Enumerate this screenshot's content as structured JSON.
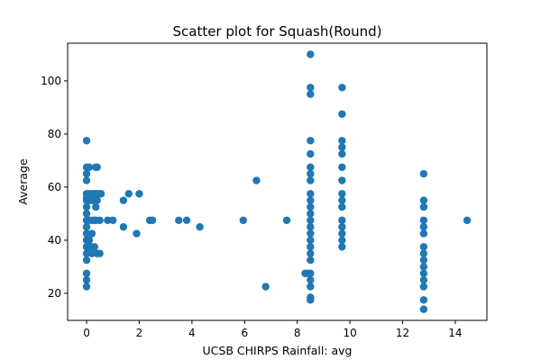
{
  "chart_data": {
    "type": "scatter",
    "title": "Scatter plot for Squash(Round)",
    "xlabel": "UCSB CHIRPS Rainfall: avg",
    "ylabel": "Average",
    "xlim": [
      -0.72,
      15.2
    ],
    "ylim": [
      9.8,
      114.2
    ],
    "xticks": [
      0,
      2,
      4,
      6,
      8,
      10,
      12,
      14
    ],
    "yticks": [
      20,
      40,
      60,
      80,
      100
    ],
    "grid": false,
    "color": "#1f77b4",
    "series": [
      {
        "points": [
          [
            0,
            77.5
          ],
          [
            0,
            67.5
          ],
          [
            0,
            65
          ],
          [
            0,
            62.5
          ],
          [
            0,
            57.5
          ],
          [
            0,
            56
          ],
          [
            0,
            55
          ],
          [
            0,
            52.5
          ],
          [
            0,
            50
          ],
          [
            0,
            47.5
          ],
          [
            0,
            45
          ],
          [
            0,
            42.5
          ],
          [
            0,
            40
          ],
          [
            0,
            37.5
          ],
          [
            0,
            35
          ],
          [
            0,
            32.5
          ],
          [
            0,
            27.5
          ],
          [
            0,
            25
          ],
          [
            0,
            22.5
          ],
          [
            0.1,
            67.5
          ],
          [
            0.1,
            57.5
          ],
          [
            0.1,
            55
          ],
          [
            0.1,
            47.5
          ],
          [
            0.1,
            40
          ],
          [
            0.1,
            37.5
          ],
          [
            0.2,
            57.5
          ],
          [
            0.2,
            55
          ],
          [
            0.2,
            47.5
          ],
          [
            0.2,
            42.5
          ],
          [
            0.2,
            37.5
          ],
          [
            0.2,
            35
          ],
          [
            0.3,
            57.5
          ],
          [
            0.3,
            55
          ],
          [
            0.3,
            47.5
          ],
          [
            0.3,
            37.5
          ],
          [
            0.35,
            67.5
          ],
          [
            0.35,
            57.5
          ],
          [
            0.35,
            52.5
          ],
          [
            0.35,
            47.5
          ],
          [
            0.4,
            67.5
          ],
          [
            0.4,
            57.5
          ],
          [
            0.4,
            55
          ],
          [
            0.4,
            35
          ],
          [
            0.5,
            57.5
          ],
          [
            0.5,
            47.5
          ],
          [
            0.5,
            35
          ],
          [
            0.55,
            57.5
          ],
          [
            0.8,
            47.5
          ],
          [
            1.0,
            47.5
          ],
          [
            1.4,
            55
          ],
          [
            1.4,
            45
          ],
          [
            1.6,
            57.5
          ],
          [
            1.9,
            42.5
          ],
          [
            2.0,
            57.5
          ],
          [
            2.4,
            47.5
          ],
          [
            2.5,
            47.5
          ],
          [
            3.5,
            47.5
          ],
          [
            3.8,
            47.5
          ],
          [
            4.3,
            45
          ],
          [
            5.95,
            47.5
          ],
          [
            6.45,
            62.5
          ],
          [
            6.8,
            22.5
          ],
          [
            7.6,
            47.5
          ],
          [
            8.3,
            27.5
          ],
          [
            8.4,
            27.5
          ],
          [
            8.5,
            110
          ],
          [
            8.5,
            97.5
          ],
          [
            8.5,
            95
          ],
          [
            8.5,
            77.5
          ],
          [
            8.5,
            72.5
          ],
          [
            8.5,
            67.5
          ],
          [
            8.5,
            65
          ],
          [
            8.5,
            62.5
          ],
          [
            8.5,
            57.5
          ],
          [
            8.5,
            55
          ],
          [
            8.5,
            52.5
          ],
          [
            8.5,
            50
          ],
          [
            8.5,
            47.5
          ],
          [
            8.5,
            45
          ],
          [
            8.5,
            42.5
          ],
          [
            8.5,
            40
          ],
          [
            8.5,
            37.5
          ],
          [
            8.5,
            35
          ],
          [
            8.5,
            32.5
          ],
          [
            8.5,
            27.5
          ],
          [
            8.5,
            25
          ],
          [
            8.5,
            22.5
          ],
          [
            8.5,
            18.5
          ],
          [
            8.5,
            17.5
          ],
          [
            9.7,
            97.5
          ],
          [
            9.7,
            87.5
          ],
          [
            9.7,
            77.5
          ],
          [
            9.7,
            75
          ],
          [
            9.7,
            72.5
          ],
          [
            9.7,
            67.5
          ],
          [
            9.7,
            62.5
          ],
          [
            9.7,
            57.5
          ],
          [
            9.7,
            55
          ],
          [
            9.7,
            52.5
          ],
          [
            9.7,
            47.5
          ],
          [
            9.7,
            45
          ],
          [
            9.7,
            42.5
          ],
          [
            9.7,
            40
          ],
          [
            9.7,
            37.5
          ],
          [
            12.8,
            65
          ],
          [
            12.8,
            55
          ],
          [
            12.8,
            52.5
          ],
          [
            12.8,
            47.5
          ],
          [
            12.8,
            45
          ],
          [
            12.8,
            42.5
          ],
          [
            12.8,
            37.5
          ],
          [
            12.8,
            35
          ],
          [
            12.8,
            32.5
          ],
          [
            12.8,
            30
          ],
          [
            12.8,
            27.5
          ],
          [
            12.8,
            25
          ],
          [
            12.8,
            22.5
          ],
          [
            12.8,
            17.5
          ],
          [
            12.8,
            14
          ],
          [
            14.45,
            47.5
          ]
        ]
      }
    ]
  }
}
